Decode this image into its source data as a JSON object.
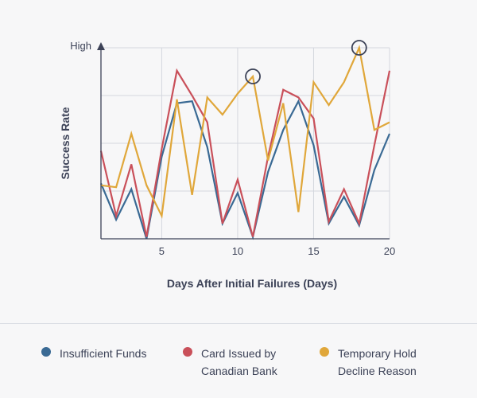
{
  "chart_data": {
    "type": "line",
    "title": "",
    "xlabel": "Days After Initial Failures (Days)",
    "ylabel": "Success Rate",
    "y_top_label": "High",
    "xlim": [
      1,
      20
    ],
    "ylim": [
      0,
      100
    ],
    "xticks": [
      5,
      10,
      15,
      20
    ],
    "grid": true,
    "x": [
      1,
      2,
      3,
      4,
      5,
      6,
      7,
      8,
      9,
      10,
      11,
      12,
      13,
      14,
      15,
      16,
      17,
      18,
      19,
      20
    ],
    "series": [
      {
        "name": "Insufficient Funds",
        "color": "#3a6a94",
        "values": [
          29,
          10,
          26,
          0,
          43,
          71,
          72,
          48,
          8,
          24,
          1,
          35,
          57,
          72,
          49,
          8,
          22,
          7,
          36,
          55
        ]
      },
      {
        "name": "Card Issued by Canadian Bank",
        "color": "#c9505a",
        "values": [
          46,
          12,
          39,
          1,
          47,
          88,
          75,
          61,
          8,
          31,
          1,
          43,
          78,
          74,
          63,
          9,
          26,
          8,
          49,
          88
        ]
      },
      {
        "name": "Temporary Hold Decline Reason",
        "color": "#e0a73a",
        "values": [
          28,
          27,
          55,
          28,
          12,
          73,
          23,
          74,
          65,
          76,
          85,
          41,
          71,
          14,
          82,
          70,
          82,
          100,
          57,
          61
        ]
      }
    ],
    "highlights": [
      {
        "series": 2,
        "x": 11
      },
      {
        "series": 2,
        "x": 18
      }
    ]
  },
  "legend": [
    {
      "label": "Insufficient Funds",
      "color": "#3a6a94"
    },
    {
      "label": "Card Issued by\nCanadian Bank",
      "color": "#c9505a"
    },
    {
      "label": "Temporary Hold\nDecline Reason",
      "color": "#e0a73a"
    }
  ]
}
